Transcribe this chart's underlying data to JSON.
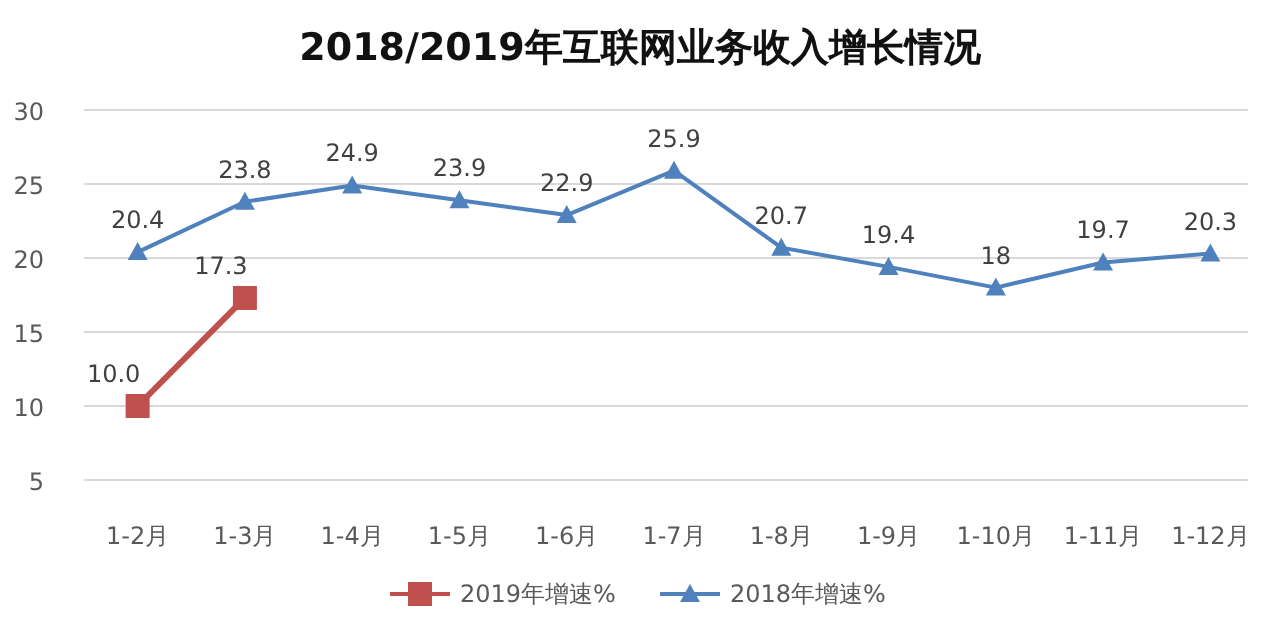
{
  "chart_data": {
    "type": "line",
    "title": "2018/2019年互联网业务收入增长情况",
    "categories": [
      "1-2月",
      "1-3月",
      "1-4月",
      "1-5月",
      "1-6月",
      "1-7月",
      "1-8月",
      "1-9月",
      "1-10月",
      "1-11月",
      "1-12月"
    ],
    "series": [
      {
        "name": "2019年增速%",
        "color": "#c0504d",
        "marker": "square",
        "values": [
          10.0,
          17.3,
          null,
          null,
          null,
          null,
          null,
          null,
          null,
          null,
          null
        ],
        "value_labels": [
          "10.0",
          "17.3",
          null,
          null,
          null,
          null,
          null,
          null,
          null,
          null,
          null
        ]
      },
      {
        "name": "2018年增速%",
        "color": "#4f81bd",
        "marker": "triangle",
        "values": [
          20.4,
          23.8,
          24.9,
          23.9,
          22.9,
          25.9,
          20.7,
          19.4,
          18,
          19.7,
          20.3
        ],
        "value_labels": [
          "20.4",
          "23.8",
          "24.9",
          "23.9",
          "22.9",
          "25.9",
          "20.7",
          "19.4",
          "18",
          "19.7",
          "20.3"
        ]
      }
    ],
    "ylim": [
      5,
      30
    ],
    "yticks": [
      5,
      10,
      15,
      20,
      25,
      30
    ],
    "grid": "y",
    "legend": "bottom"
  }
}
